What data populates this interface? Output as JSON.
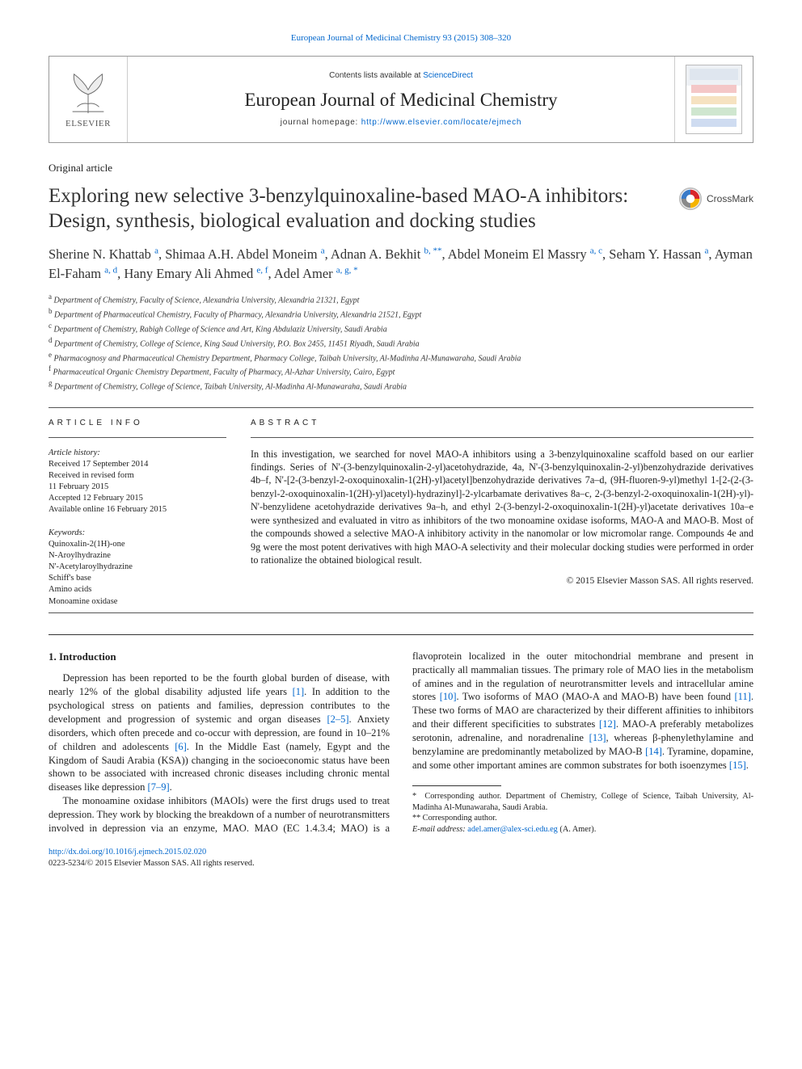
{
  "header": {
    "citation_prefix": "European Journal of Medicinal Chemistry 93 (2015) 308",
    "citation_dash": "–",
    "citation_suffix": "320",
    "contents_line_prefix": "Contents lists available at ",
    "contents_line_link": "ScienceDirect",
    "journal_name": "European Journal of Medicinal Chemistry",
    "homepage_prefix": "journal homepage: ",
    "homepage_link": "http://www.elsevier.com/locate/ejmech",
    "publisher_name": "ELSEVIER"
  },
  "crossmark_label": "CrossMark",
  "article_type": "Original article",
  "title": "Exploring new selective 3-benzylquinoxaline-based MAO-A inhibitors: Design, synthesis, biological evaluation and docking studies",
  "authors_html": "Sherine N. Khattab <span class='sup'>a</span>, Shimaa A.H. Abdel Moneim <span class='sup'>a</span>, Adnan A. Bekhit <span class='sup'>b, **</span>, Abdel Moneim El Massry <span class='sup'>a, c</span>, Seham Y. Hassan <span class='sup'>a</span>, Ayman El-Faham <span class='sup'>a, d</span>, Hany Emary Ali Ahmed <span class='sup'>e, f</span>, Adel Amer <span class='sup'>a, g, *</span>",
  "affiliations": [
    {
      "k": "a",
      "t": "Department of Chemistry, Faculty of Science, Alexandria University, Alexandria 21321, Egypt"
    },
    {
      "k": "b",
      "t": "Department of Pharmaceutical Chemistry, Faculty of Pharmacy, Alexandria University, Alexandria 21521, Egypt"
    },
    {
      "k": "c",
      "t": "Department of Chemistry, Rabigh College of Science and Art, King Abdulaziz University, Saudi Arabia"
    },
    {
      "k": "d",
      "t": "Department of Chemistry, College of Science, King Saud University, P.O. Box 2455, 11451 Riyadh, Saudi Arabia"
    },
    {
      "k": "e",
      "t": "Pharmacognosy and Pharmaceutical Chemistry Department, Pharmacy College, Taibah University, Al-Madinha Al-Munawaraha, Saudi Arabia"
    },
    {
      "k": "f",
      "t": "Pharmaceutical Organic Chemistry Department, Faculty of Pharmacy, Al-Azhar University, Cairo, Egypt"
    },
    {
      "k": "g",
      "t": "Department of Chemistry, College of Science, Taibah University, Al-Madinha Al-Munawaraha, Saudi Arabia"
    }
  ],
  "info": {
    "heading": "ARTICLE INFO",
    "history_label": "Article history:",
    "history": [
      "Received 17 September 2014",
      "Received in revised form",
      "11 February 2015",
      "Accepted 12 February 2015",
      "Available online 16 February 2015"
    ],
    "keywords_label": "Keywords:",
    "keywords": [
      "Quinoxalin-2(1H)-one",
      "N-Aroylhydrazine",
      "N'-Acetylaroylhydrazine",
      "Schiff's base",
      "Amino acids",
      "Monoamine oxidase"
    ]
  },
  "abstract": {
    "heading": "ABSTRACT",
    "text": "In this investigation, we searched for novel MAO-A inhibitors using a 3-benzylquinoxaline scaffold based on our earlier findings. Series of N'-(3-benzylquinoxalin-2-yl)acetohydrazide, 4a, N'-(3-benzylquinoxalin-2-yl)benzohydrazide derivatives 4b–f, N'-[2-(3-benzyl-2-oxoquinoxalin-1(2H)-yl)acetyl]benzohydrazide derivatives 7a–d, (9H-fluoren-9-yl)methyl 1-[2-(2-(3-benzyl-2-oxoquinoxalin-1(2H)-yl)acetyl)-hydrazinyl]-2-ylcarbamate derivatives 8a–c, 2-(3-benzyl-2-oxoquinoxalin-1(2H)-yl)-N'-benzylidene acetohydrazide derivatives 9a–h, and ethyl 2-(3-benzyl-2-oxoquinoxalin-1(2H)-yl)acetate derivatives 10a–e were synthesized and evaluated in vitro as inhibitors of the two monoamine oxidase isoforms, MAO-A and MAO-B. Most of the compounds showed a selective MAO-A inhibitory activity in the nanomolar or low micromolar range. Compounds 4e and 9g were the most potent derivatives with high MAO-A selectivity and their molecular docking studies were performed in order to rationalize the obtained biological result.",
    "copyright": "© 2015 Elsevier Masson SAS. All rights reserved."
  },
  "body": {
    "section_heading": "1. Introduction",
    "p1_a": "Depression has been reported to be the fourth global burden of disease, with nearly 12% of the global disability adjusted life years ",
    "p1_ref1": "[1]",
    "p1_b": ". In addition to the psychological stress on patients and families, depression contributes to the development and progression of systemic and organ diseases ",
    "p1_ref2": "[2–5]",
    "p1_c": ". Anxiety disorders, which often precede and co-occur with depression, are found in 10–21% of children and adolescents ",
    "p1_ref3": "[6]",
    "p1_d": ". In the Middle East (namely, Egypt and the Kingdom of Saudi Arabia (KSA)) changing in the socioeconomic status have been shown to be associated with increased chronic",
    "p1_e": "diseases including chronic mental diseases like depression ",
    "p1_ref4": "[7–9]",
    "p1_f": ".",
    "p2_a": "The monoamine oxidase inhibitors (MAOIs) were the first drugs used to treat depression. They work by blocking the breakdown of a number of neurotransmitters involved in depression via an enzyme, MAO. MAO (EC 1.4.3.4; MAO) is a flavoprotein localized in the outer mitochondrial membrane and present in practically all mammalian tissues. The primary role of MAO lies in the metabolism of amines and in the regulation of neurotransmitter levels and intracellular amine stores ",
    "p2_ref1": "[10]",
    "p2_b": ". Two isoforms of MAO (MAO-A and MAO-B) have been found ",
    "p2_ref2": "[11]",
    "p2_c": ". These two forms of MAO are characterized by their different affinities to inhibitors and their different specificities to substrates ",
    "p2_ref3": "[12]",
    "p2_d": ". MAO-A preferably metabolizes serotonin, adrenaline, and noradrenaline ",
    "p2_ref4": "[13]",
    "p2_e": ", whereas β-phenylethylamine and benzylamine are predominantly metabolized by MAO-B ",
    "p2_ref5": "[14]",
    "p2_f": ". Tyramine, dopamine, and some other important amines are common substrates for both isoenzymes ",
    "p2_ref6": "[15]",
    "p2_g": "."
  },
  "footnotes": {
    "f1_star": "*",
    "f1": "Corresponding author. Department of Chemistry, College of Science, Taibah University, Al-Madinha Al-Munawaraha, Saudi Arabia.",
    "f2_star": "**",
    "f2": "Corresponding author.",
    "email_label": "E-mail address: ",
    "email": "adel.amer@alex-sci.edu.eg",
    "email_suffix": " (A. Amer)."
  },
  "footer": {
    "doi": "http://dx.doi.org/10.1016/j.ejmech.2015.02.020",
    "rights": "0223-5234/© 2015 Elsevier Masson SAS. All rights reserved."
  },
  "colors": {
    "link": "#0066cc",
    "text": "#222222",
    "border": "#999999",
    "crossmark_red": "#d9252a",
    "crossmark_yellow": "#f5b400",
    "crossmark_blue": "#3a7bc8",
    "crossmark_grey": "#8a8a8a"
  }
}
